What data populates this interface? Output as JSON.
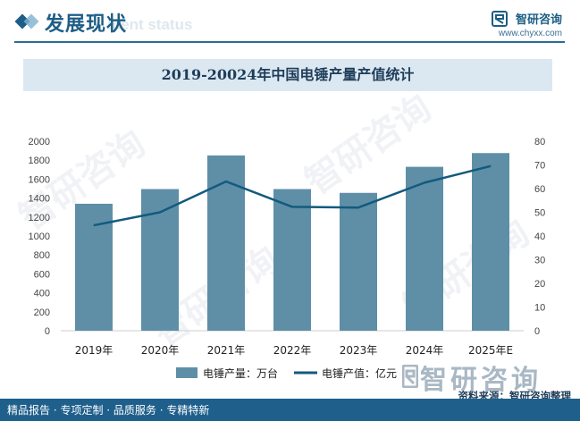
{
  "header": {
    "title": "发展现状",
    "subtitle": "ment status"
  },
  "logo": {
    "name": "智研咨询",
    "url": "www.chyxx.com"
  },
  "watermark_text": "智研咨询",
  "footer": {
    "left_text": "精品报告 · 专项定制 · 品质服务 · 专精特新",
    "source": "资料来源：智研咨询整理"
  },
  "colors": {
    "bar": "#5e8fa7",
    "line": "#135a7d",
    "header": "#1d5e86",
    "footer": "#1f5f8b",
    "band": "#dbe8f1"
  },
  "chart_data": {
    "type": "bar",
    "title": "2019-20024年中国电锤产量产值统计",
    "categories": [
      "2019年",
      "2020年",
      "2021年",
      "2022年",
      "2023年",
      "2024年",
      "2025年E"
    ],
    "series": [
      {
        "name": "电锤产量：万台",
        "type": "bar",
        "axis": "left",
        "values": [
          1340,
          1495,
          1850,
          1495,
          1455,
          1730,
          1875
        ]
      },
      {
        "name": "电锤产值：亿元",
        "type": "line",
        "axis": "right",
        "values": [
          44.5,
          50,
          63,
          52.3,
          52,
          62.5,
          69.5
        ]
      }
    ],
    "y_left": {
      "min": 0,
      "max": 2000,
      "step": 200
    },
    "y_right": {
      "min": 0,
      "max": 80,
      "step": 10
    },
    "grid": false,
    "legend": "bottom-center"
  }
}
